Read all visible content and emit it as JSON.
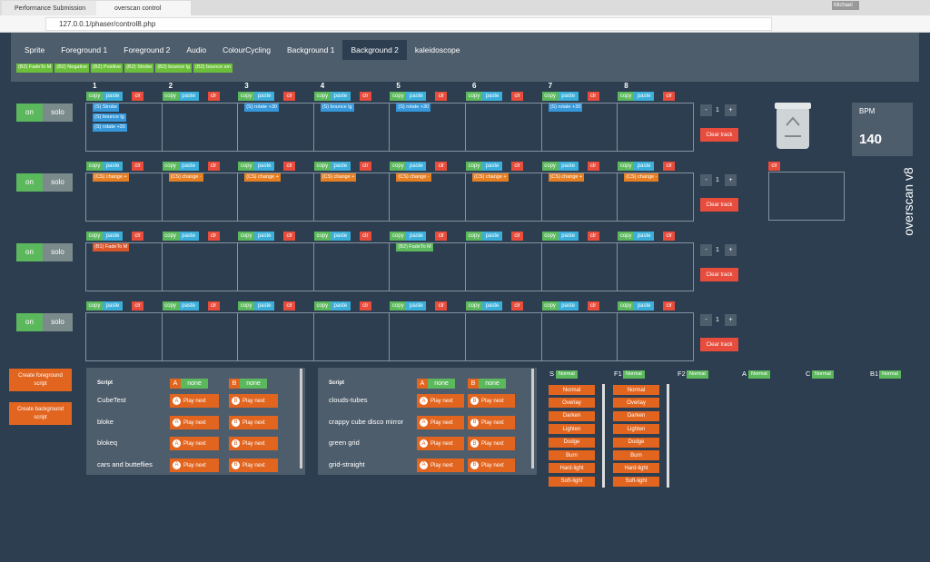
{
  "browser": {
    "tabs": [
      "Performance Submission",
      "overscan control"
    ],
    "url": "127.0.0.1/phaser/control8.php",
    "user": "Michael"
  },
  "nav": {
    "items": [
      "Sprite",
      "Foreground 1",
      "Foreground 2",
      "Audio",
      "ColourCycling",
      "Background 1",
      "Background 2",
      "kaleidoscope"
    ],
    "active": 6
  },
  "tags": [
    "(B2) FadeTo M",
    "(B2) Negative",
    "(B2) Positive",
    "(B2) Strobe",
    "(B2) bounce lg",
    "(B2) bounce sm"
  ],
  "columns": [
    "1",
    "2",
    "3",
    "4",
    "5",
    "6",
    "7",
    "8"
  ],
  "controls": {
    "copy": "copy",
    "paste": "paste",
    "clr": "clr",
    "on": "on",
    "solo": "solo",
    "minus": "-",
    "plus": "+",
    "clear": "Clear track"
  },
  "tracks": [
    {
      "count": "1",
      "cells": [
        [
          {
            "text": "(S) Strobe",
            "color": "#3498db"
          },
          {
            "text": "(S) bounce lg",
            "color": "#3498db"
          },
          {
            "text": "(S) rotate +30",
            "color": "#3498db"
          }
        ],
        [],
        [
          {
            "text": "(S) rotate +30",
            "color": "#3498db"
          }
        ],
        [
          {
            "text": "(S) bounce lg",
            "color": "#3498db"
          }
        ],
        [
          {
            "text": "(S) rotate +30",
            "color": "#3498db"
          }
        ],
        [],
        [
          {
            "text": "(S) rotate +30",
            "color": "#3498db"
          }
        ],
        []
      ]
    },
    {
      "count": "1",
      "cells": [
        [
          {
            "text": "(CS) change +",
            "color": "#e67e22"
          }
        ],
        [
          {
            "text": "(CS) change -",
            "color": "#e67e22"
          }
        ],
        [
          {
            "text": "(CS) change +",
            "color": "#e67e22"
          }
        ],
        [
          {
            "text": "(CS) change +",
            "color": "#e67e22"
          }
        ],
        [
          {
            "text": "(CS) change -",
            "color": "#e67e22"
          }
        ],
        [
          {
            "text": "(CS) change +",
            "color": "#e67e22"
          }
        ],
        [
          {
            "text": "(CS) change +",
            "color": "#e67e22"
          }
        ],
        [
          {
            "text": "(CS) change -",
            "color": "#e67e22"
          }
        ]
      ]
    },
    {
      "count": "1",
      "cells": [
        [
          {
            "text": "(B1) FadeTo M",
            "color": "#d9552a"
          }
        ],
        [],
        [],
        [],
        [
          {
            "text": "(B2) FadeTo M",
            "color": "#5cb85c"
          }
        ],
        [],
        [],
        []
      ]
    },
    {
      "count": "1",
      "cells": [
        [],
        [],
        [],
        [],
        [],
        [],
        [],
        []
      ]
    }
  ],
  "bpm": {
    "label": "BPM",
    "value": "140"
  },
  "trash_clr": "clr",
  "app_title": "overscan v8",
  "create": [
    "Create foreground script",
    "Create background script"
  ],
  "script_panels": [
    {
      "header": "Script",
      "a_label": "A",
      "a_value": "none",
      "b_label": "B",
      "b_value": "none",
      "play": "Play next",
      "scripts": [
        "CubeTest",
        "bloke",
        "blokeq",
        "cars and butteflies"
      ]
    },
    {
      "header": "Script",
      "a_label": "A",
      "a_value": "none",
      "b_label": "B",
      "b_value": "none",
      "play": "Play next",
      "scripts": [
        "clouds-tubes",
        "crappy cube disco mirror",
        "green grid",
        "grid-straight"
      ]
    }
  ],
  "blend": {
    "channels": [
      {
        "name": "S",
        "mode": "Normal",
        "options": [
          "Normal",
          "Overlay",
          "Darken",
          "Lighten",
          "Dodge",
          "Burn",
          "Hard-light",
          "Soft-light"
        ]
      },
      {
        "name": "F1",
        "mode": "Normal",
        "options": [
          "Normal",
          "Overlay",
          "Darken",
          "Lighten",
          "Dodge",
          "Burn",
          "Hard-light",
          "Soft-light"
        ]
      },
      {
        "name": "F2",
        "mode": "Normal"
      },
      {
        "name": "A",
        "mode": "Normal"
      },
      {
        "name": "C",
        "mode": "Normal"
      },
      {
        "name": "B1",
        "mode": "Normal"
      }
    ]
  }
}
